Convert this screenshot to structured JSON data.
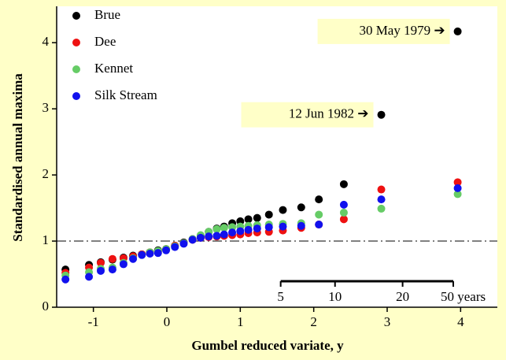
{
  "chart_data": {
    "type": "scatter",
    "x_label": "Gumbel reduced variate, y",
    "y_label": "Standardised annual maxima",
    "xlim": [
      -1.5,
      4.5
    ],
    "ylim": [
      0,
      4.55
    ],
    "xticks": [
      -1,
      0,
      1,
      2,
      3,
      4
    ],
    "yticks": [
      0,
      1,
      2,
      3,
      4
    ],
    "reference_line": 1,
    "legend": "top-left",
    "return_period_ticks": [
      {
        "value": 1.55,
        "label": "5"
      },
      {
        "value": 2.29,
        "label": "10"
      },
      {
        "value": 3.21,
        "label": "20"
      },
      {
        "value": 3.9,
        "label": "50 years"
      }
    ],
    "annotations": [
      {
        "text": "30 May 1979 ➔",
        "x": 3.96,
        "y": 4.17
      },
      {
        "text": "12 Jun 1982 ➔",
        "x": 2.92,
        "y": 2.91
      }
    ],
    "series": [
      {
        "name": "Brue",
        "color": "#000000",
        "x": [
          -1.38,
          -1.06,
          -0.9,
          -0.74,
          -0.59,
          -0.46,
          -0.34,
          -0.23,
          -0.12,
          -0.01,
          0.11,
          0.23,
          0.35,
          0.46,
          0.57,
          0.68,
          0.78,
          0.89,
          1.0,
          1.11,
          1.23,
          1.39,
          1.58,
          1.83,
          2.07,
          2.41,
          2.92,
          3.96
        ],
        "values": [
          0.57,
          0.64,
          0.68,
          0.72,
          0.75,
          0.78,
          0.8,
          0.83,
          0.86,
          0.88,
          0.93,
          0.98,
          1.03,
          1.08,
          1.14,
          1.19,
          1.22,
          1.27,
          1.3,
          1.33,
          1.35,
          1.4,
          1.47,
          1.51,
          1.63,
          1.86,
          2.91,
          4.17
        ]
      },
      {
        "name": "Dee",
        "color": "#ee1111",
        "x": [
          -1.38,
          -1.06,
          -0.9,
          -0.74,
          -0.59,
          -0.46,
          -0.34,
          -0.23,
          -0.12,
          -0.01,
          0.11,
          0.23,
          0.35,
          0.46,
          0.57,
          0.68,
          0.78,
          0.89,
          1.0,
          1.11,
          1.23,
          1.39,
          1.58,
          1.83,
          2.07,
          2.41,
          2.92,
          3.96
        ],
        "values": [
          0.52,
          0.6,
          0.67,
          0.73,
          0.74,
          0.77,
          0.8,
          0.83,
          0.84,
          0.88,
          0.93,
          0.97,
          1.02,
          1.05,
          1.06,
          1.07,
          1.08,
          1.09,
          1.1,
          1.12,
          1.13,
          1.14,
          1.16,
          1.2,
          1.25,
          1.33,
          1.78,
          1.89
        ]
      },
      {
        "name": "Kennet",
        "color": "#66cc66",
        "x": [
          -1.38,
          -1.06,
          -0.9,
          -0.74,
          -0.59,
          -0.46,
          -0.34,
          -0.23,
          -0.12,
          -0.01,
          0.11,
          0.23,
          0.35,
          0.46,
          0.57,
          0.68,
          0.78,
          0.89,
          1.0,
          1.11,
          1.23,
          1.39,
          1.58,
          1.83,
          2.07,
          2.41,
          2.92,
          3.96
        ],
        "values": [
          0.48,
          0.53,
          0.58,
          0.6,
          0.67,
          0.74,
          0.79,
          0.83,
          0.85,
          0.88,
          0.92,
          0.97,
          1.03,
          1.09,
          1.14,
          1.18,
          1.2,
          1.21,
          1.22,
          1.23,
          1.24,
          1.25,
          1.26,
          1.27,
          1.4,
          1.43,
          1.49,
          1.71
        ]
      },
      {
        "name": "Silk Stream",
        "color": "#1111ee",
        "x": [
          -1.38,
          -1.06,
          -0.9,
          -0.74,
          -0.59,
          -0.46,
          -0.34,
          -0.23,
          -0.12,
          -0.01,
          0.11,
          0.23,
          0.35,
          0.46,
          0.57,
          0.68,
          0.78,
          0.89,
          1.0,
          1.11,
          1.23,
          1.39,
          1.58,
          1.83,
          2.07,
          2.41,
          2.92,
          3.96
        ],
        "values": [
          0.42,
          0.46,
          0.55,
          0.57,
          0.65,
          0.73,
          0.79,
          0.81,
          0.82,
          0.86,
          0.91,
          0.96,
          1.02,
          1.05,
          1.07,
          1.08,
          1.1,
          1.13,
          1.15,
          1.17,
          1.19,
          1.21,
          1.22,
          1.23,
          1.25,
          1.55,
          1.63,
          1.8
        ]
      }
    ]
  }
}
